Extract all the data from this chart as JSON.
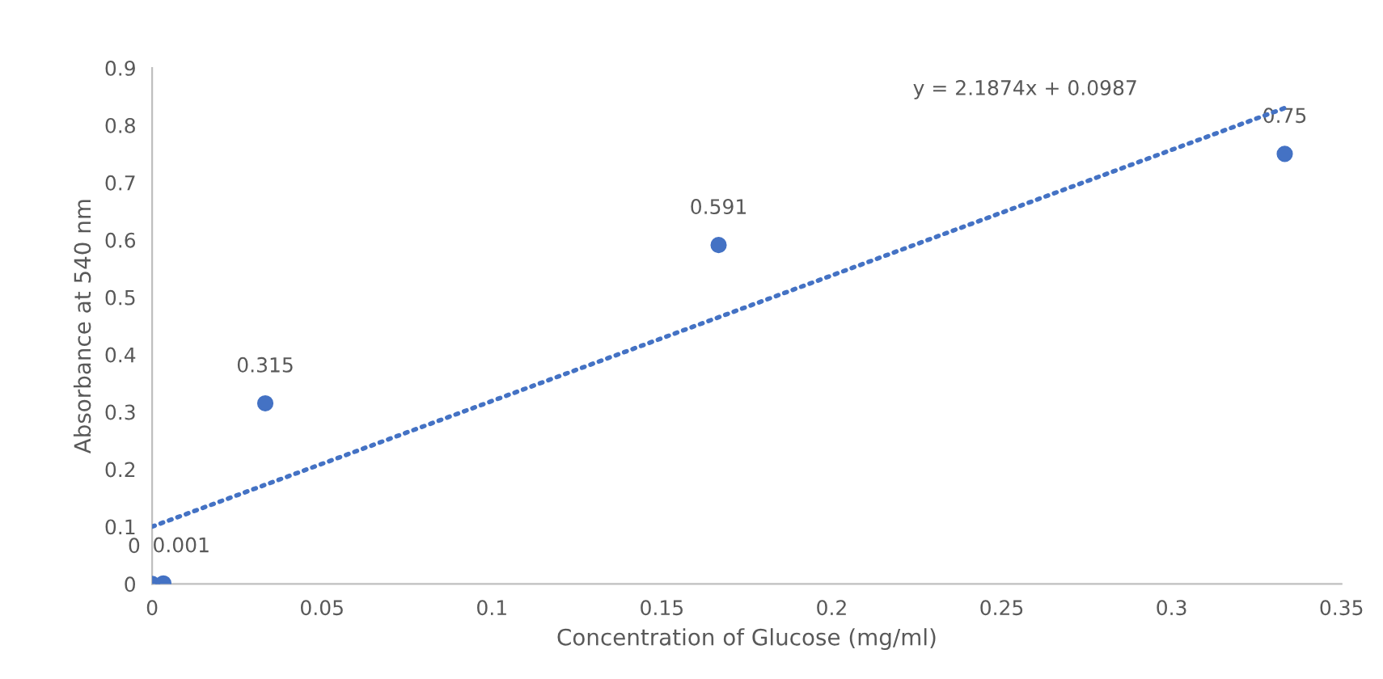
{
  "chart_data": {
    "type": "scatter",
    "xlabel": "Concentration of Glucose (mg/ml)",
    "ylabel": "Absorbance at 540 nm",
    "series": [
      {
        "color": "#4472c4",
        "x": [
          0,
          0.0033,
          0.0333,
          0.1667,
          0.3333
        ],
        "values": [
          0,
          0.001,
          0.315,
          0.591,
          0.75
        ],
        "value_labels": [
          "0",
          "0.001",
          "0.315",
          "0.591",
          "0.75"
        ],
        "marker": "circle"
      },
      {
        "type": "line",
        "color": "#4472c4",
        "x": [
          0,
          0.3333
        ],
        "values": [
          0.1,
          0.83
        ],
        "line_style": "dotted",
        "marker": "none"
      }
    ],
    "annotations": [
      "y = 2.1874x + 0.0987"
    ],
    "xlim": [
      0,
      0.35
    ],
    "xticks": [
      0,
      0.05,
      0.1,
      0.15,
      0.2,
      0.25,
      0.3,
      0.35
    ],
    "ylim": [
      0,
      0.9
    ],
    "yticks": [
      0,
      0.1,
      0.2,
      0.3,
      0.4,
      0.5,
      0.6,
      0.7,
      0.8,
      0.9
    ],
    "grid": false,
    "legend": false
  }
}
